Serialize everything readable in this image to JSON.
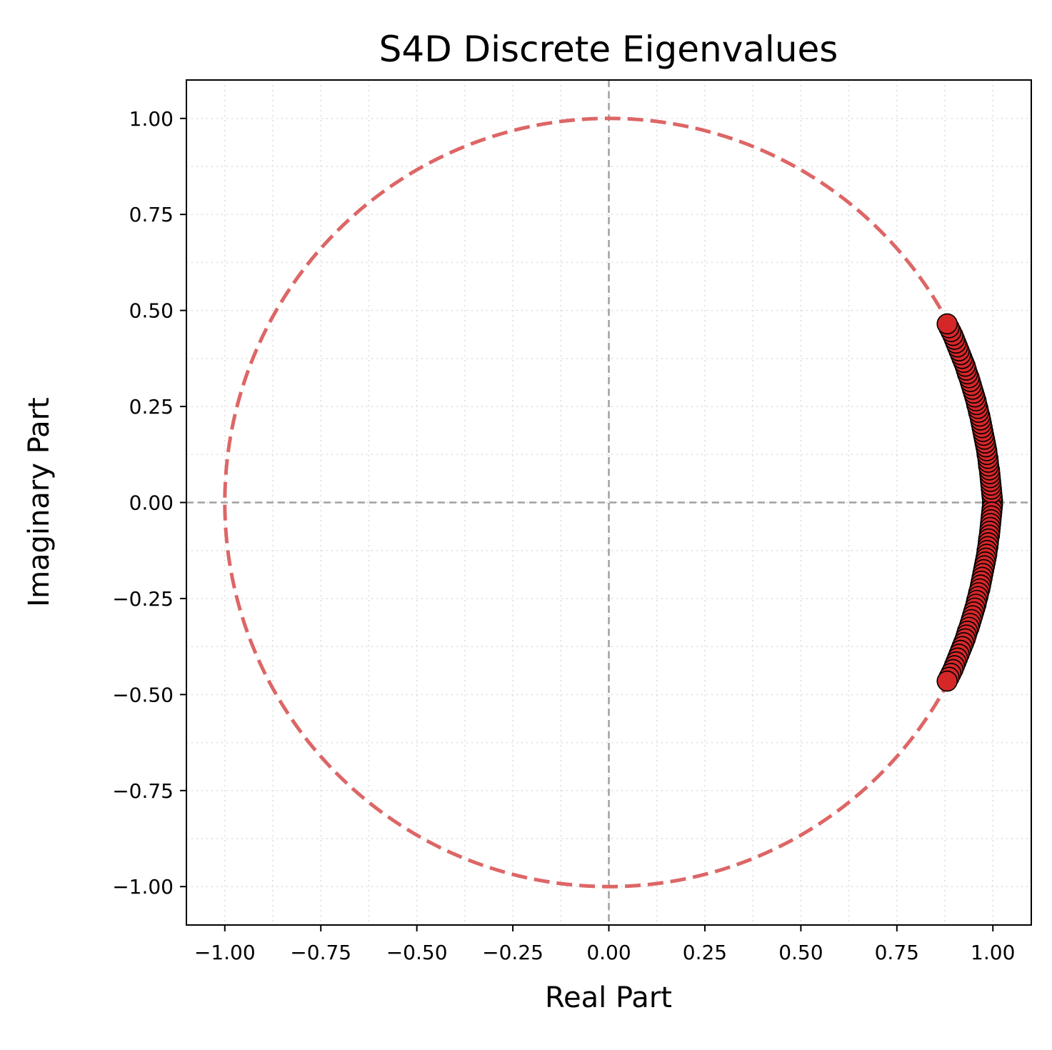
{
  "chart_data": {
    "type": "scatter",
    "title": "S4D Discrete Eigenvalues",
    "xlabel": "Real Part",
    "ylabel": "Imaginary Part",
    "xlim": [
      -1.1,
      1.1
    ],
    "ylim": [
      -1.1,
      1.1
    ],
    "x_ticks": [
      -1.0,
      -0.75,
      -0.5,
      -0.25,
      0.0,
      0.25,
      0.5,
      0.75,
      1.0
    ],
    "y_ticks": [
      -1.0,
      -0.75,
      -0.5,
      -0.25,
      0.0,
      0.25,
      0.5,
      0.75,
      1.0
    ],
    "x_tick_labels": [
      "−1.00",
      "−0.75",
      "−0.50",
      "−0.25",
      "0.00",
      "0.25",
      "0.50",
      "0.75",
      "1.00"
    ],
    "y_tick_labels": [
      "−1.00",
      "−0.75",
      "−0.50",
      "−0.25",
      "0.00",
      "0.25",
      "0.50",
      "0.75",
      "1.00"
    ],
    "grid": true,
    "reference_lines": {
      "x": 0,
      "y": 0,
      "color": "#a0a0a0",
      "style": "dashed"
    },
    "unit_circle": {
      "radius": 1.0,
      "color": "#dd6666",
      "style": "dashed"
    },
    "marker_color": "#d62728",
    "marker_edge_color": "#000000",
    "series": [
      {
        "points": [
          [
            0.881,
            0.465
          ],
          [
            0.886,
            0.455
          ],
          [
            0.891,
            0.445
          ],
          [
            0.896,
            0.435
          ],
          [
            0.9,
            0.425
          ],
          [
            0.904,
            0.415
          ],
          [
            0.908,
            0.405
          ],
          [
            0.912,
            0.395
          ],
          [
            0.916,
            0.385
          ],
          [
            0.92,
            0.375
          ],
          [
            0.924,
            0.365
          ],
          [
            0.928,
            0.355
          ],
          [
            0.931,
            0.345
          ],
          [
            0.934,
            0.335
          ],
          [
            0.938,
            0.325
          ],
          [
            0.941,
            0.315
          ],
          [
            0.944,
            0.305
          ],
          [
            0.947,
            0.295
          ],
          [
            0.95,
            0.285
          ],
          [
            0.953,
            0.275
          ],
          [
            0.956,
            0.265
          ],
          [
            0.958,
            0.255
          ],
          [
            0.961,
            0.245
          ],
          [
            0.963,
            0.235
          ],
          [
            0.966,
            0.225
          ],
          [
            0.968,
            0.215
          ],
          [
            0.97,
            0.205
          ],
          [
            0.972,
            0.195
          ],
          [
            0.974,
            0.185
          ],
          [
            0.976,
            0.175
          ],
          [
            0.978,
            0.165
          ],
          [
            0.98,
            0.155
          ],
          [
            0.982,
            0.145
          ],
          [
            0.984,
            0.135
          ],
          [
            0.985,
            0.125
          ],
          [
            0.987,
            0.115
          ],
          [
            0.988,
            0.105
          ],
          [
            0.989,
            0.095
          ],
          [
            0.991,
            0.085
          ],
          [
            0.992,
            0.075
          ],
          [
            0.993,
            0.065
          ],
          [
            0.994,
            0.055
          ],
          [
            0.995,
            0.045
          ],
          [
            0.996,
            0.035
          ],
          [
            0.997,
            0.025
          ],
          [
            0.998,
            0.015
          ],
          [
            0.999,
            0.005
          ],
          [
            0.881,
            -0.465
          ],
          [
            0.886,
            -0.455
          ],
          [
            0.891,
            -0.445
          ],
          [
            0.896,
            -0.435
          ],
          [
            0.9,
            -0.425
          ],
          [
            0.904,
            -0.415
          ],
          [
            0.908,
            -0.405
          ],
          [
            0.912,
            -0.395
          ],
          [
            0.916,
            -0.385
          ],
          [
            0.92,
            -0.375
          ],
          [
            0.924,
            -0.365
          ],
          [
            0.928,
            -0.355
          ],
          [
            0.931,
            -0.345
          ],
          [
            0.934,
            -0.335
          ],
          [
            0.938,
            -0.325
          ],
          [
            0.941,
            -0.315
          ],
          [
            0.944,
            -0.305
          ],
          [
            0.947,
            -0.295
          ],
          [
            0.95,
            -0.285
          ],
          [
            0.953,
            -0.275
          ],
          [
            0.956,
            -0.265
          ],
          [
            0.958,
            -0.255
          ],
          [
            0.961,
            -0.245
          ],
          [
            0.963,
            -0.235
          ],
          [
            0.966,
            -0.225
          ],
          [
            0.968,
            -0.215
          ],
          [
            0.97,
            -0.205
          ],
          [
            0.972,
            -0.195
          ],
          [
            0.974,
            -0.185
          ],
          [
            0.976,
            -0.175
          ],
          [
            0.978,
            -0.165
          ],
          [
            0.98,
            -0.155
          ],
          [
            0.982,
            -0.145
          ],
          [
            0.984,
            -0.135
          ],
          [
            0.985,
            -0.125
          ],
          [
            0.987,
            -0.115
          ],
          [
            0.988,
            -0.105
          ],
          [
            0.989,
            -0.095
          ],
          [
            0.991,
            -0.085
          ],
          [
            0.992,
            -0.075
          ],
          [
            0.993,
            -0.065
          ],
          [
            0.994,
            -0.055
          ],
          [
            0.995,
            -0.045
          ],
          [
            0.996,
            -0.035
          ],
          [
            0.997,
            -0.025
          ],
          [
            0.998,
            -0.015
          ],
          [
            0.999,
            -0.005
          ]
        ]
      }
    ]
  }
}
